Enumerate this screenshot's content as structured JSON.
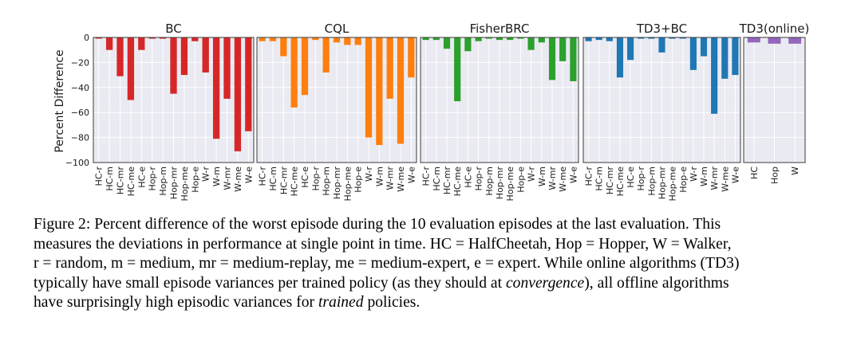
{
  "chart_data": {
    "type": "bar",
    "ylabel": "Percent Difference",
    "ylim": [
      -100,
      0
    ],
    "yticks": [
      0,
      -20,
      -40,
      -60,
      -80,
      -100
    ],
    "grid": true,
    "panels": [
      {
        "title": "BC",
        "color": "#d62728",
        "categories": [
          "HC-r",
          "HC-m",
          "HC-mr",
          "HC-me",
          "HC-e",
          "Hop-r",
          "Hop-m",
          "Hop-mr",
          "Hop-me",
          "Hop-e",
          "W-r",
          "W-m",
          "W-mr",
          "W-me",
          "W-e"
        ],
        "values": [
          -0.5,
          -10,
          -31,
          -50,
          -10,
          -1,
          -1,
          -45,
          -30,
          -3,
          -28,
          -81,
          -49,
          -91,
          -75
        ]
      },
      {
        "title": "CQL",
        "color": "#ff7f0e",
        "categories": [
          "HC-r",
          "HC-m",
          "HC-mr",
          "HC-me",
          "HC-e",
          "Hop-r",
          "Hop-m",
          "Hop-mr",
          "Hop-me",
          "Hop-e",
          "W-r",
          "W-m",
          "W-mr",
          "W-me",
          "W-e"
        ],
        "values": [
          -3,
          -3,
          -15,
          -56,
          -46,
          -2,
          -28,
          -4,
          -6,
          -6,
          -80,
          -86,
          -49,
          -85,
          -32
        ]
      },
      {
        "title": "FisherBRC",
        "color": "#2ca02c",
        "categories": [
          "HC-r",
          "HC-m",
          "HC-mr",
          "HC-me",
          "HC-e",
          "Hop-r",
          "Hop-m",
          "Hop-mr",
          "Hop-me",
          "Hop-e",
          "W-r",
          "W-m",
          "W-mr",
          "W-me",
          "W-e"
        ],
        "values": [
          -2,
          -2,
          -9,
          -51,
          -11,
          -3,
          -1,
          -2,
          -2,
          -1,
          -10,
          -4,
          -34,
          -19,
          -35
        ]
      },
      {
        "title": "TD3+BC",
        "color": "#1f77b4",
        "categories": [
          "HC-r",
          "HC-m",
          "HC-mr",
          "HC-me",
          "HC-e",
          "Hop-r",
          "Hop-m",
          "Hop-mr",
          "Hop-me",
          "Hop-e",
          "W-r",
          "W-m",
          "W-mr",
          "W-me",
          "W-e"
        ],
        "values": [
          -3,
          -2,
          -3,
          -32,
          -18,
          -1,
          -1,
          -12,
          -1,
          -0.5,
          -26,
          -15,
          -61,
          -33,
          -30
        ]
      },
      {
        "title": "TD3(online)",
        "color": "#9467bd",
        "categories": [
          "HC",
          "Hop",
          "W"
        ],
        "values": [
          -4,
          -5,
          -5
        ]
      }
    ]
  },
  "caption": {
    "label": "Figure 2:",
    "line1": "Percent difference of the worst episode during the 10 evaluation episodes at the last evaluation. This",
    "line2": "measures the deviations in performance at single point in time. HC = HalfCheetah, Hop = Hopper, W = Walker,",
    "line3": "r = random, m = medium, mr = medium-replay, me = medium-expert, e = expert. While online algorithms (TD3)",
    "line4a": "typically have small episode variances per trained policy (as they should at ",
    "line4em": "convergence",
    "line4b": "), all offline algorithms",
    "line5a": "have surprisingly high episodic variances for ",
    "line5em": "trained",
    "line5b": " policies."
  }
}
